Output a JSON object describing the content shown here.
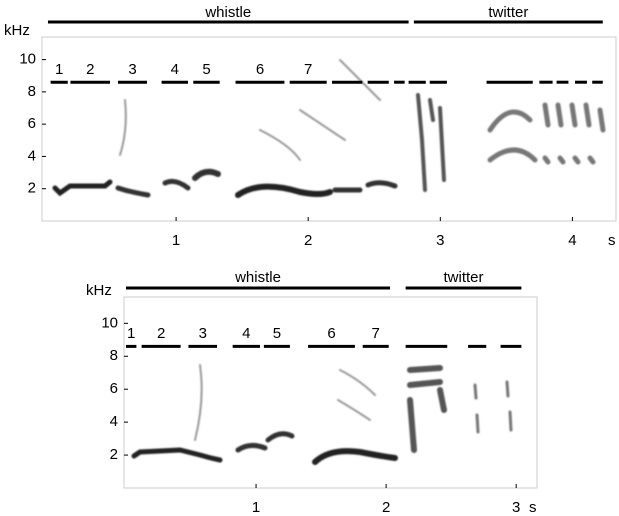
{
  "chart_data": [
    {
      "type": "spectrogram",
      "y_label": "kHz",
      "x_label": "s",
      "xlim": [
        0,
        4.33
      ],
      "ylim": [
        0,
        11.4
      ],
      "xticks": [
        1,
        2,
        3,
        4
      ],
      "yticks": [
        2,
        4,
        6,
        8,
        10
      ],
      "sections": [
        {
          "label": "whistle",
          "start": 0.03,
          "end": 2.76
        },
        {
          "label": "twitter",
          "start": 2.8,
          "end": 4.23
        }
      ],
      "segment_level": 8.6,
      "segments": [
        {
          "label": "1",
          "start": 0.05,
          "end": 0.18
        },
        {
          "label": "2",
          "start": 0.2,
          "end": 0.5
        },
        {
          "label": "3",
          "start": 0.56,
          "end": 0.78
        },
        {
          "label": "4",
          "start": 0.89,
          "end": 1.09
        },
        {
          "label": "5",
          "start": 1.13,
          "end": 1.33
        },
        {
          "label": "6",
          "start": 1.45,
          "end": 1.82
        },
        {
          "label": "7",
          "start": 1.86,
          "end": 2.14
        },
        {
          "start": 2.18,
          "end": 2.41
        },
        {
          "start": 2.45,
          "end": 2.61
        },
        {
          "start": 2.65,
          "end": 2.73
        },
        {
          "start": 2.76,
          "end": 2.89
        },
        {
          "start": 2.92,
          "end": 3.05
        },
        {
          "start": 3.35,
          "end": 3.7
        },
        {
          "start": 3.75,
          "end": 3.85
        },
        {
          "start": 3.88,
          "end": 3.97
        },
        {
          "start": 4.02,
          "end": 4.11
        },
        {
          "start": 4.15,
          "end": 4.23
        }
      ]
    },
    {
      "type": "spectrogram",
      "y_label": "kHz",
      "x_label": "s",
      "xlim": [
        0,
        3.16
      ],
      "ylim": [
        0,
        11.6
      ],
      "xticks": [
        1,
        2,
        3
      ],
      "yticks": [
        2,
        4,
        6,
        8,
        10
      ],
      "sections": [
        {
          "label": "whistle",
          "start": 0.0,
          "end": 2.03
        },
        {
          "label": "twitter",
          "start": 2.15,
          "end": 3.04
        }
      ],
      "segment_level": 8.6,
      "segments": [
        {
          "label": "1",
          "start": 0.0,
          "end": 0.08
        },
        {
          "label": "2",
          "start": 0.12,
          "end": 0.42
        },
        {
          "label": "3",
          "start": 0.48,
          "end": 0.7
        },
        {
          "label": "4",
          "start": 0.82,
          "end": 1.03
        },
        {
          "label": "5",
          "start": 1.06,
          "end": 1.26
        },
        {
          "label": "6",
          "start": 1.4,
          "end": 1.76
        },
        {
          "label": "7",
          "start": 1.82,
          "end": 2.02
        },
        {
          "start": 2.15,
          "end": 2.47
        },
        {
          "start": 2.63,
          "end": 2.77
        },
        {
          "start": 2.88,
          "end": 3.04
        }
      ]
    }
  ]
}
